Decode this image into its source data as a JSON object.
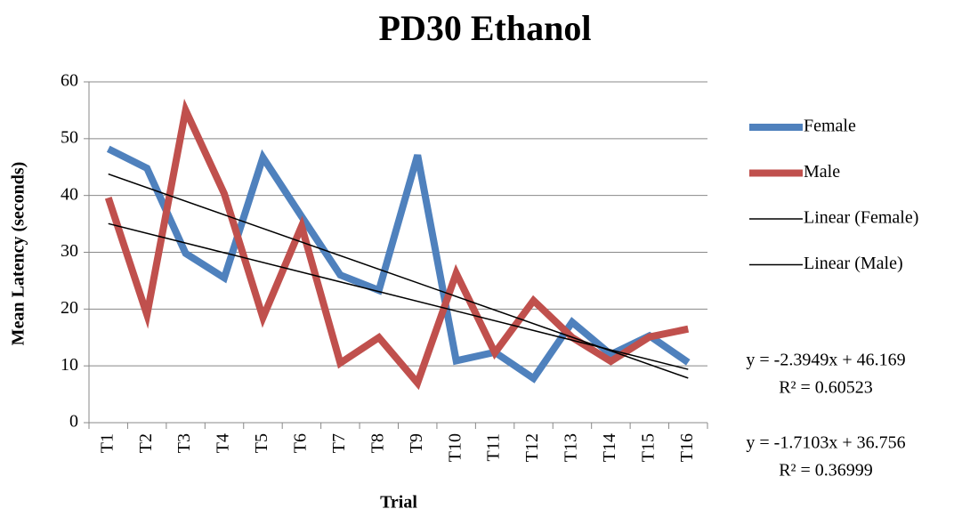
{
  "chart_data": {
    "type": "line",
    "title": "PD30 Ethanol",
    "x_label": "Trial",
    "y_label": "Mean Latency (seconds)",
    "categories": [
      "T1",
      "T2",
      "T3",
      "T4",
      "T5",
      "T6",
      "T7",
      "T8",
      "T9",
      "T10",
      "T11",
      "T12",
      "T13",
      "T14",
      "T15",
      "T16"
    ],
    "series": [
      {
        "name": "Female",
        "color": "#4f81bd",
        "values": [
          48.2,
          44.8,
          29.8,
          25.5,
          46.7,
          36.3,
          26,
          23.3,
          47.1,
          10.9,
          12.4,
          7.8,
          17.7,
          12,
          15.3,
          10.6
        ]
      },
      {
        "name": "Male",
        "color": "#c0504d",
        "values": [
          39.6,
          19,
          55,
          40.3,
          18.5,
          34.6,
          10.5,
          15,
          7,
          26.3,
          12.3,
          21.5,
          15,
          10.8,
          15.1,
          16.5
        ]
      }
    ],
    "trendlines": [
      {
        "name": "Linear (Female)",
        "color": "#000000",
        "slope": -2.3949,
        "intercept": 46.169,
        "equation": "y = -2.3949x + 46.169",
        "r2_label": "R² = 0.60523"
      },
      {
        "name": "Linear (Male)",
        "color": "#000000",
        "slope": -1.7103,
        "intercept": 36.756,
        "equation": "y = -1.7103x + 36.756",
        "r2_label": "R² = 0.36999"
      }
    ],
    "ylim": [
      0,
      60
    ],
    "yticks": [
      0,
      10,
      20,
      30,
      40,
      50,
      60
    ],
    "grid": true,
    "legend": "right"
  }
}
